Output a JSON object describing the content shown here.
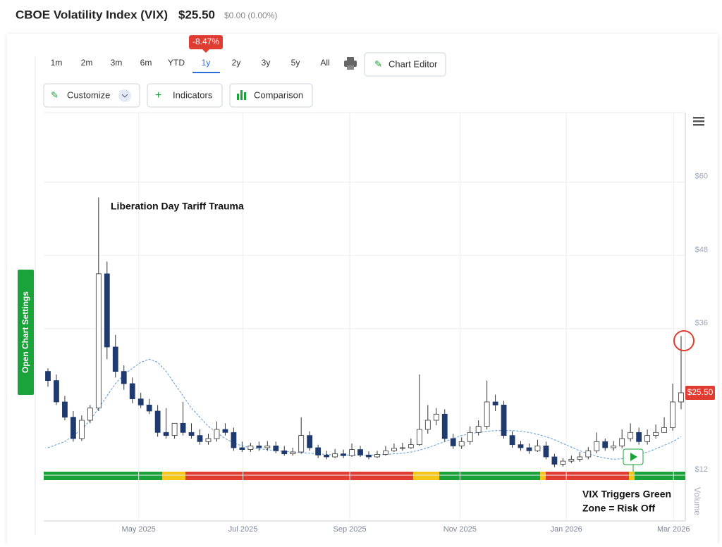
{
  "header": {
    "title": "CBOE Volatility Index (VIX)",
    "price": "$25.50",
    "change": "$0.00 (0.00%)"
  },
  "toolbar": {
    "ranges": [
      "1m",
      "2m",
      "3m",
      "6m",
      "YTD",
      "1y",
      "2y",
      "3y",
      "5y",
      "All"
    ],
    "active_badge": "-8.47%",
    "chart_editor": "Chart Editor",
    "customize": "Customize",
    "indicators": "Indicators",
    "comparison": "Comparison",
    "settings_tab": "Open Chart Settings"
  },
  "chart_data": {
    "type": "candlestick",
    "annotations": [
      "Liberation Day Tariff Trauma",
      "VIX Triggers Green",
      "Zone = Risk Off"
    ],
    "volume_label": "Volume",
    "up_color": "#ffffff",
    "down_color": "#1e3a6e",
    "wick_color": "#333333",
    "ma_color": "#5b9bd5",
    "open": [
      29,
      27.5,
      24,
      21.5,
      18,
      21,
      23,
      45,
      33,
      29,
      27,
      24.5,
      23.5,
      22.5,
      19,
      18.5,
      20.5,
      19,
      18.5,
      17.5,
      18,
      19.5,
      19,
      16.5,
      16.2,
      16.8,
      16.5,
      16.8,
      16,
      15.5,
      15.8,
      18.5,
      16.5,
      15.3,
      15,
      15.5,
      15.2,
      16.2,
      15.3,
      15,
      15.4,
      16,
      16.4,
      16.5,
      17,
      19.5,
      21,
      22,
      18,
      16.8,
      17.5,
      19,
      20,
      24,
      23.5,
      18.5,
      17,
      16.5,
      16,
      16.8,
      15,
      13.8,
      14.3,
      14.6,
      15,
      16,
      17.5,
      16.5,
      16.8,
      18,
      19,
      17.5,
      18.5,
      19,
      19.8,
      24
    ],
    "high": [
      29.5,
      28.5,
      25,
      22.5,
      21.8,
      23.5,
      57.5,
      47,
      35,
      30,
      28,
      25.5,
      24.5,
      23.5,
      23,
      20,
      24,
      20.5,
      19.5,
      18.8,
      20.8,
      20.5,
      19.8,
      17.5,
      17.3,
      17.5,
      17.6,
      17.5,
      16.8,
      16.5,
      21.5,
      19.2,
      17,
      16,
      16.3,
      16.2,
      17.2,
      16.8,
      15.9,
      16,
      16.8,
      17.2,
      17.3,
      18,
      28.5,
      23.5,
      23,
      22.8,
      18.8,
      18.2,
      20,
      21,
      27.5,
      25.2,
      24.2,
      19.2,
      17.6,
      17.2,
      17.8,
      17.5,
      15.5,
      14.8,
      15.2,
      15.8,
      16.6,
      19,
      18,
      17.6,
      19.5,
      20.5,
      19.8,
      19.5,
      20.3,
      21.5,
      27,
      34.8
    ],
    "low": [
      26.5,
      23.5,
      21,
      17.5,
      17.6,
      20.5,
      22.5,
      31,
      28,
      26,
      23.8,
      23,
      22,
      18.3,
      18,
      18,
      18.5,
      18,
      17,
      17,
      17.5,
      18.5,
      16,
      15.8,
      15.8,
      16,
      16,
      15.6,
      15.2,
      15.2,
      15.5,
      16,
      14.8,
      14.6,
      14.8,
      14.8,
      15,
      15,
      14.6,
      14.8,
      15.2,
      15.8,
      16,
      16.3,
      16.8,
      18.8,
      20.2,
      17.5,
      16.3,
      16.3,
      17,
      18.5,
      19.5,
      22.5,
      18,
      16.5,
      16,
      15.5,
      15.8,
      14.6,
      13.3,
      13.4,
      14,
      14.2,
      14.6,
      15.6,
      16,
      16,
      16.4,
      17.5,
      17,
      17,
      18,
      19.2,
      19.3,
      22.8
    ],
    "close": [
      27.5,
      24,
      21.5,
      18,
      21,
      23,
      45,
      33,
      29,
      27,
      24.5,
      23.5,
      22.5,
      19,
      18.5,
      20.5,
      19,
      18.5,
      17.5,
      18,
      19.5,
      19,
      16.5,
      16.2,
      16.8,
      16.5,
      16.8,
      16,
      15.5,
      15.8,
      18.5,
      16.5,
      15.3,
      15,
      15.5,
      15.2,
      16.2,
      15.3,
      15,
      15.4,
      16,
      16.4,
      16.5,
      17,
      19.5,
      21,
      22,
      18,
      16.8,
      17.5,
      19,
      20,
      24,
      23.5,
      18.5,
      17,
      16.5,
      16,
      16.8,
      15,
      13.8,
      14.3,
      14.6,
      15,
      16,
      17.5,
      16.5,
      16.8,
      18,
      19,
      17.5,
      18.5,
      19,
      19.8,
      24,
      25.5
    ],
    "ma": [
      16.5,
      17,
      17.5,
      18.5,
      19.5,
      21,
      23,
      25,
      27,
      28.5,
      29.5,
      30.5,
      31,
      30.5,
      29,
      27,
      25,
      23,
      21.5,
      20,
      19,
      18,
      17.3,
      16.8,
      16.5,
      16.3,
      16.2,
      16,
      15.9,
      15.8,
      15.7,
      15.6,
      15.5,
      15.4,
      15.3,
      15.3,
      15.3,
      15.3,
      15.3,
      15.3,
      15.4,
      15.5,
      15.6,
      15.8,
      16.1,
      16.5,
      17,
      17.5,
      18,
      18.5,
      18.8,
      19,
      19.2,
      19.3,
      19.3,
      19.3,
      19.2,
      19,
      18.7,
      18.3,
      17.8,
      17.2,
      16.6,
      16,
      15.5,
      15.1,
      14.8,
      14.6,
      14.7,
      15,
      15.4,
      15.8,
      16.3,
      16.9,
      17.5,
      18.3
    ],
    "last_price": {
      "value": 25.5,
      "label": "$25.50"
    },
    "ylim": [
      12,
      71.4
    ],
    "yticks": [
      {
        "value": 12,
        "label": "$12"
      },
      {
        "value": 36,
        "label": "$36"
      },
      {
        "value": 48,
        "label": "$48"
      },
      {
        "value": 60,
        "label": "$60"
      }
    ],
    "xlim": [
      -0.5,
      75.5
    ],
    "xticks": [
      {
        "value": 10.75,
        "label": "May 2025"
      },
      {
        "value": 23.1,
        "label": "Jul 2025"
      },
      {
        "value": 35.75,
        "label": "Sep 2025"
      },
      {
        "value": 48.8,
        "label": "Nov 2025"
      },
      {
        "value": 61.4,
        "label": "Jan 2026"
      },
      {
        "value": 74.1,
        "label": "Mar 2026"
      }
    ],
    "grid": true
  }
}
